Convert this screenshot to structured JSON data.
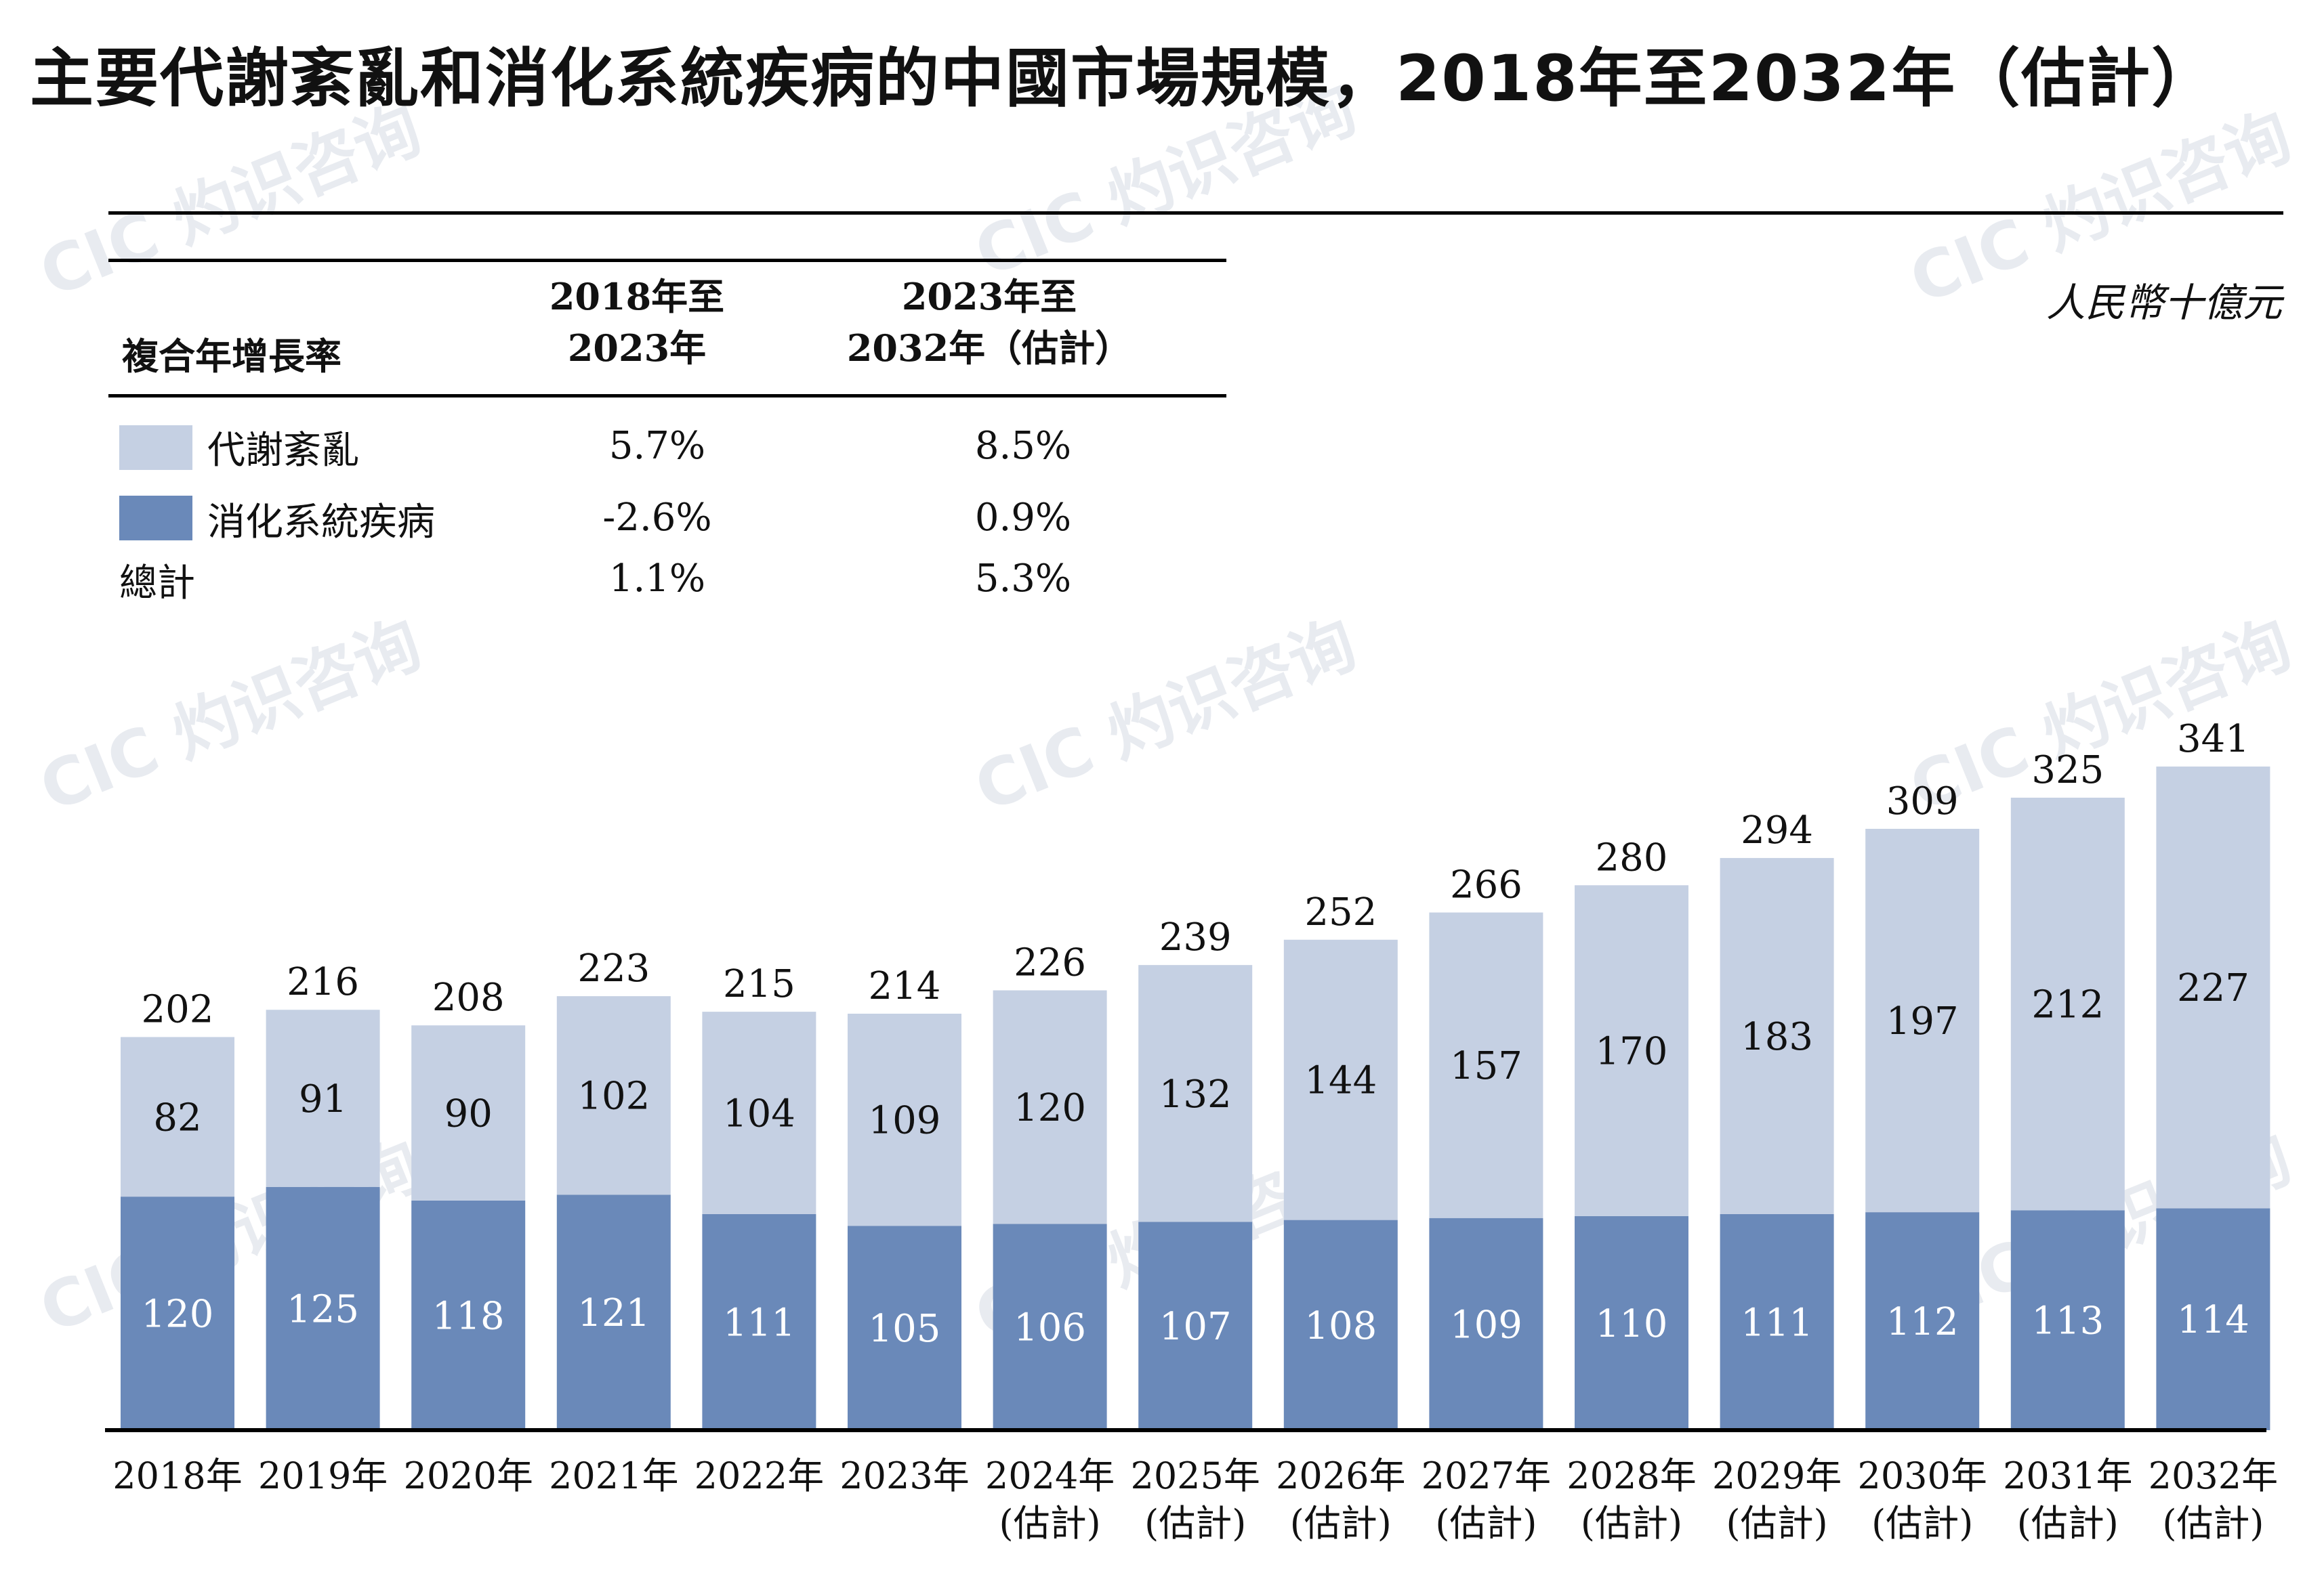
{
  "title": "主要代謝紊亂和消化系統疾病的中國市場規模，2018年至2032年（估計）",
  "unit": "人民幣十億元",
  "cagr_table": {
    "header_label": "複合年增長率",
    "col1_line1": "2018年至",
    "col1_line2": "2023年",
    "col2_line1": "2023年至",
    "col2_line2": "2032年（估計）",
    "rows": [
      {
        "label": "代謝紊亂",
        "v1": "5.7%",
        "v2": "8.5%"
      },
      {
        "label": "消化系統疾病",
        "v1": "-2.6%",
        "v2": "0.9%"
      },
      {
        "label": "總計",
        "v1": "1.1%",
        "v2": "5.3%"
      }
    ]
  },
  "colors": {
    "metabolic": "#c5d0e3",
    "digestive": "#6a89b9"
  },
  "watermark": {
    "logo": "CIC",
    "text": "灼识咨询"
  },
  "chart_data": {
    "type": "bar",
    "stacked": true,
    "categories": [
      "2018年",
      "2019年",
      "2020年",
      "2021年",
      "2022年",
      "2023年",
      "2024年",
      "2025年",
      "2026年",
      "2027年",
      "2028年",
      "2029年",
      "2030年",
      "2031年",
      "2032年"
    ],
    "sublabels": [
      "",
      "",
      "",
      "",
      "",
      "",
      "(估計)",
      "(估計)",
      "(估計)",
      "(估計)",
      "(估計)",
      "(估計)",
      "(估計)",
      "(估計)",
      "(估計)"
    ],
    "series": [
      {
        "name": "消化系統疾病",
        "values": [
          120,
          125,
          118,
          121,
          111,
          105,
          106,
          107,
          108,
          109,
          110,
          111,
          112,
          113,
          114
        ]
      },
      {
        "name": "代謝紊亂",
        "values": [
          82,
          91,
          90,
          102,
          104,
          109,
          120,
          132,
          144,
          157,
          170,
          183,
          197,
          212,
          227
        ]
      }
    ],
    "totals": [
      202,
      216,
      208,
      223,
      215,
      214,
      226,
      239,
      252,
      266,
      280,
      294,
      309,
      325,
      341
    ],
    "ylim": [
      0,
      341
    ]
  }
}
